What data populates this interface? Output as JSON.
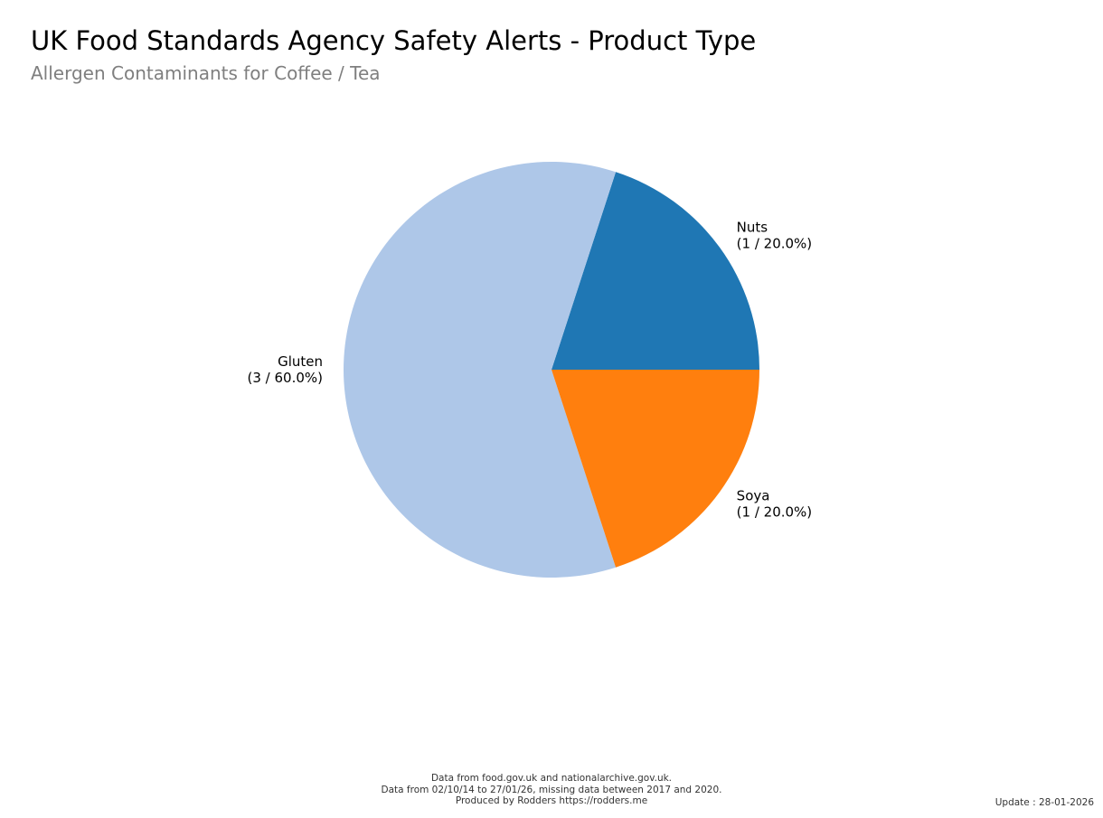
{
  "chart_data": {
    "type": "pie",
    "title": "UK Food Standards Agency Safety Alerts - Product Type",
    "subtitle": "Allergen Contaminants for Coffee / Tea",
    "slices": [
      {
        "label": "Nuts",
        "value": 1,
        "percent": "20.0%",
        "display": "(1 / 20.0%)",
        "color": "#1f77b4"
      },
      {
        "label": "Gluten",
        "value": 3,
        "percent": "60.0%",
        "display": "(3 / 60.0%)",
        "color": "#aec7e8"
      },
      {
        "label": "Soya",
        "value": 1,
        "percent": "20.0%",
        "display": "(1 / 20.0%)",
        "color": "#ff7f0e"
      }
    ]
  },
  "footer": {
    "line1": "Data from food.gov.uk and nationalarchive.gov.uk.",
    "line2": "Data from 02/10/14 to 27/01/26, missing data between 2017 and 2020.",
    "line3": "Produced by Rodders https://rodders.me"
  },
  "update": "Update : 28-01-2026"
}
